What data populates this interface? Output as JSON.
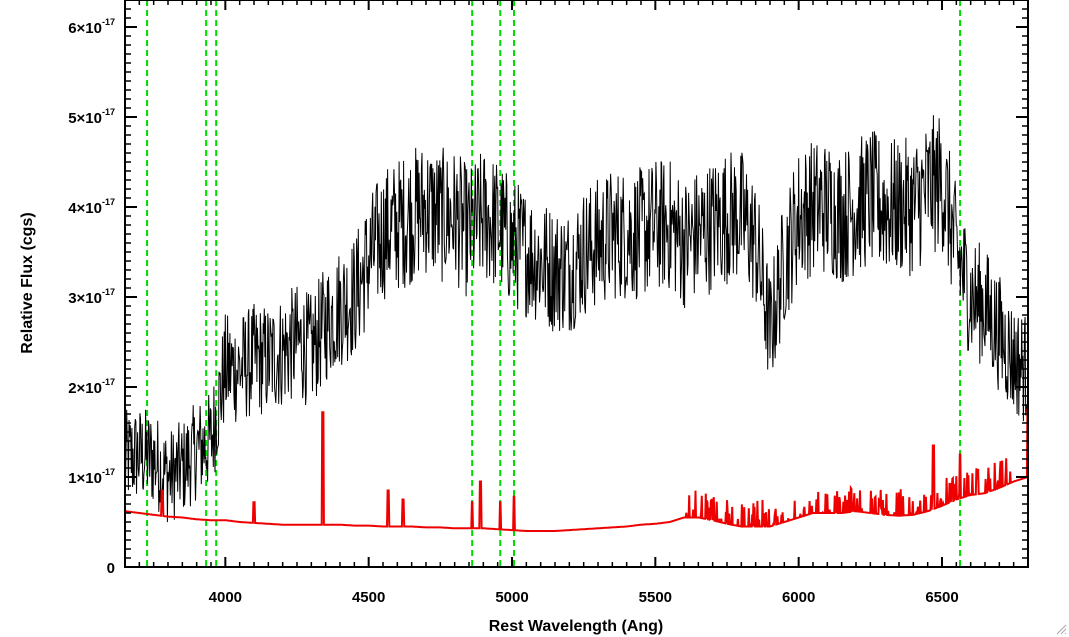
{
  "chart_data": {
    "type": "line",
    "title": "",
    "xlabel": "Rest Wavelength (Ang)",
    "ylabel": "Relative Flux (cgs)",
    "xlim": [
      3650,
      6800
    ],
    "ylim": [
      0,
      6.3e-17
    ],
    "x_ticks": [
      {
        "value": 4000,
        "label": "4000"
      },
      {
        "value": 4500,
        "label": "4500"
      },
      {
        "value": 5000,
        "label": "5000"
      },
      {
        "value": 5500,
        "label": "5500"
      },
      {
        "value": 6000,
        "label": "6000"
      },
      {
        "value": 6500,
        "label": "6500"
      }
    ],
    "y_ticks": [
      {
        "value": 0,
        "label": "0"
      },
      {
        "value": 1e-17,
        "label": "1×10",
        "exp": "-17"
      },
      {
        "value": 2e-17,
        "label": "2×10",
        "exp": "-17"
      },
      {
        "value": 3e-17,
        "label": "3×10",
        "exp": "-17"
      },
      {
        "value": 4e-17,
        "label": "4×10",
        "exp": "-17"
      },
      {
        "value": 5e-17,
        "label": "5×10",
        "exp": "-17"
      },
      {
        "value": 6e-17,
        "label": "6×10",
        "exp": "-17"
      }
    ],
    "grid": false,
    "series": [
      {
        "color": "#000000",
        "x": [
          3650,
          3700,
          3750,
          3800,
          3850,
          3900,
          3950,
          4000,
          4050,
          4100,
          4150,
          4200,
          4250,
          4300,
          4350,
          4400,
          4450,
          4500,
          4550,
          4600,
          4650,
          4700,
          4750,
          4800,
          4850,
          4900,
          4950,
          5000,
          5050,
          5100,
          5150,
          5200,
          5250,
          5300,
          5350,
          5400,
          5450,
          5500,
          5550,
          5600,
          5650,
          5700,
          5750,
          5800,
          5850,
          5900,
          5950,
          6000,
          6050,
          6100,
          6150,
          6200,
          6250,
          6300,
          6350,
          6400,
          6450,
          6500,
          6550,
          6600,
          6650,
          6700,
          6750,
          6800
        ],
        "y": [
          1.2e-17,
          1.25e-17,
          1.2e-17,
          1e-17,
          1.1e-17,
          1.3e-17,
          1.4e-17,
          2.2e-17,
          2.2e-17,
          2.3e-17,
          2.3e-17,
          2.4e-17,
          2.5e-17,
          2.4e-17,
          2.7e-17,
          2.9e-17,
          3e-17,
          3.4e-17,
          3.7e-17,
          3.8e-17,
          3.9e-17,
          4e-17,
          3.9e-17,
          3.9e-17,
          3.7e-17,
          3.9e-17,
          3.8e-17,
          3.6e-17,
          3.5e-17,
          3.4e-17,
          3.3e-17,
          3.3e-17,
          3.5e-17,
          3.6e-17,
          3.7e-17,
          3.7e-17,
          3.7e-17,
          3.8e-17,
          3.8e-17,
          3.6e-17,
          3.7e-17,
          3.8e-17,
          3.9e-17,
          3.9e-17,
          3.6e-17,
          2.6e-17,
          3.4e-17,
          3.9e-17,
          4e-17,
          4e-17,
          3.9e-17,
          4e-17,
          4.1e-17,
          4e-17,
          4e-17,
          4e-17,
          4.2e-17,
          4.3e-17,
          3.5e-17,
          3e-17,
          2.9e-17,
          2.6e-17,
          2.3e-17,
          2.2e-17
        ]
      },
      {
        "color": "#ee0000",
        "x": [
          3650,
          3700,
          3750,
          3800,
          3850,
          3900,
          3950,
          4000,
          4050,
          4100,
          4150,
          4200,
          4250,
          4300,
          4350,
          4400,
          4450,
          4500,
          4550,
          4600,
          4650,
          4700,
          4750,
          4800,
          4850,
          4900,
          4950,
          5000,
          5050,
          5100,
          5150,
          5200,
          5250,
          5300,
          5350,
          5400,
          5450,
          5500,
          5550,
          5600,
          5650,
          5700,
          5750,
          5800,
          5850,
          5900,
          5950,
          6000,
          6050,
          6100,
          6150,
          6200,
          6250,
          6300,
          6350,
          6400,
          6450,
          6500,
          6550,
          6600,
          6650,
          6700,
          6750,
          6800
        ],
        "y": [
          6.2e-18,
          6e-18,
          5.8e-18,
          5.6e-18,
          5.5e-18,
          5.3e-18,
          5.2e-18,
          5.2e-18,
          5e-18,
          4.9e-18,
          4.8e-18,
          4.7e-18,
          4.7e-18,
          4.7e-18,
          4.7e-18,
          4.7e-18,
          4.6e-18,
          4.6e-18,
          4.5e-18,
          4.5e-18,
          4.5e-18,
          4.4e-18,
          4.4e-18,
          4.3e-18,
          4.3e-18,
          4.3e-18,
          4.2e-18,
          4.1e-18,
          4e-18,
          4e-18,
          4e-18,
          4.1e-18,
          4.2e-18,
          4.3e-18,
          4.4e-18,
          4.5e-18,
          4.7e-18,
          4.8e-18,
          5e-18,
          5.5e-18,
          5.5e-18,
          5.2e-18,
          4.8e-18,
          4.5e-18,
          4.5e-18,
          4.5e-18,
          5e-18,
          5.5e-18,
          6e-18,
          6e-18,
          6e-18,
          6.2e-18,
          6e-18,
          5.8e-18,
          5.7e-18,
          5.8e-18,
          6.2e-18,
          6.8e-18,
          7.5e-18,
          8e-18,
          8.2e-18,
          8.8e-18,
          9.5e-18,
          1e-17
        ],
        "spikes": [
          {
            "x": 3780,
            "y": 8.5e-18
          },
          {
            "x": 4100,
            "y": 7.2e-18
          },
          {
            "x": 4340,
            "y": 1.72e-17
          },
          {
            "x": 4568,
            "y": 8.5e-18
          },
          {
            "x": 4620,
            "y": 7.5e-18
          },
          {
            "x": 4861,
            "y": 7.2e-18
          },
          {
            "x": 4890,
            "y": 9.5e-18
          },
          {
            "x": 4959,
            "y": 7.2e-18
          },
          {
            "x": 5007,
            "y": 7.8e-18
          },
          {
            "x": 6470,
            "y": 1.35e-17
          },
          {
            "x": 6563,
            "y": 1.25e-17
          },
          {
            "x": 6800,
            "y": 1.75e-17
          }
        ]
      }
    ],
    "vertical_lines": {
      "color": "#00dd00",
      "x": [
        3727,
        3933,
        3968,
        4861,
        4959,
        5007,
        6563
      ]
    }
  }
}
